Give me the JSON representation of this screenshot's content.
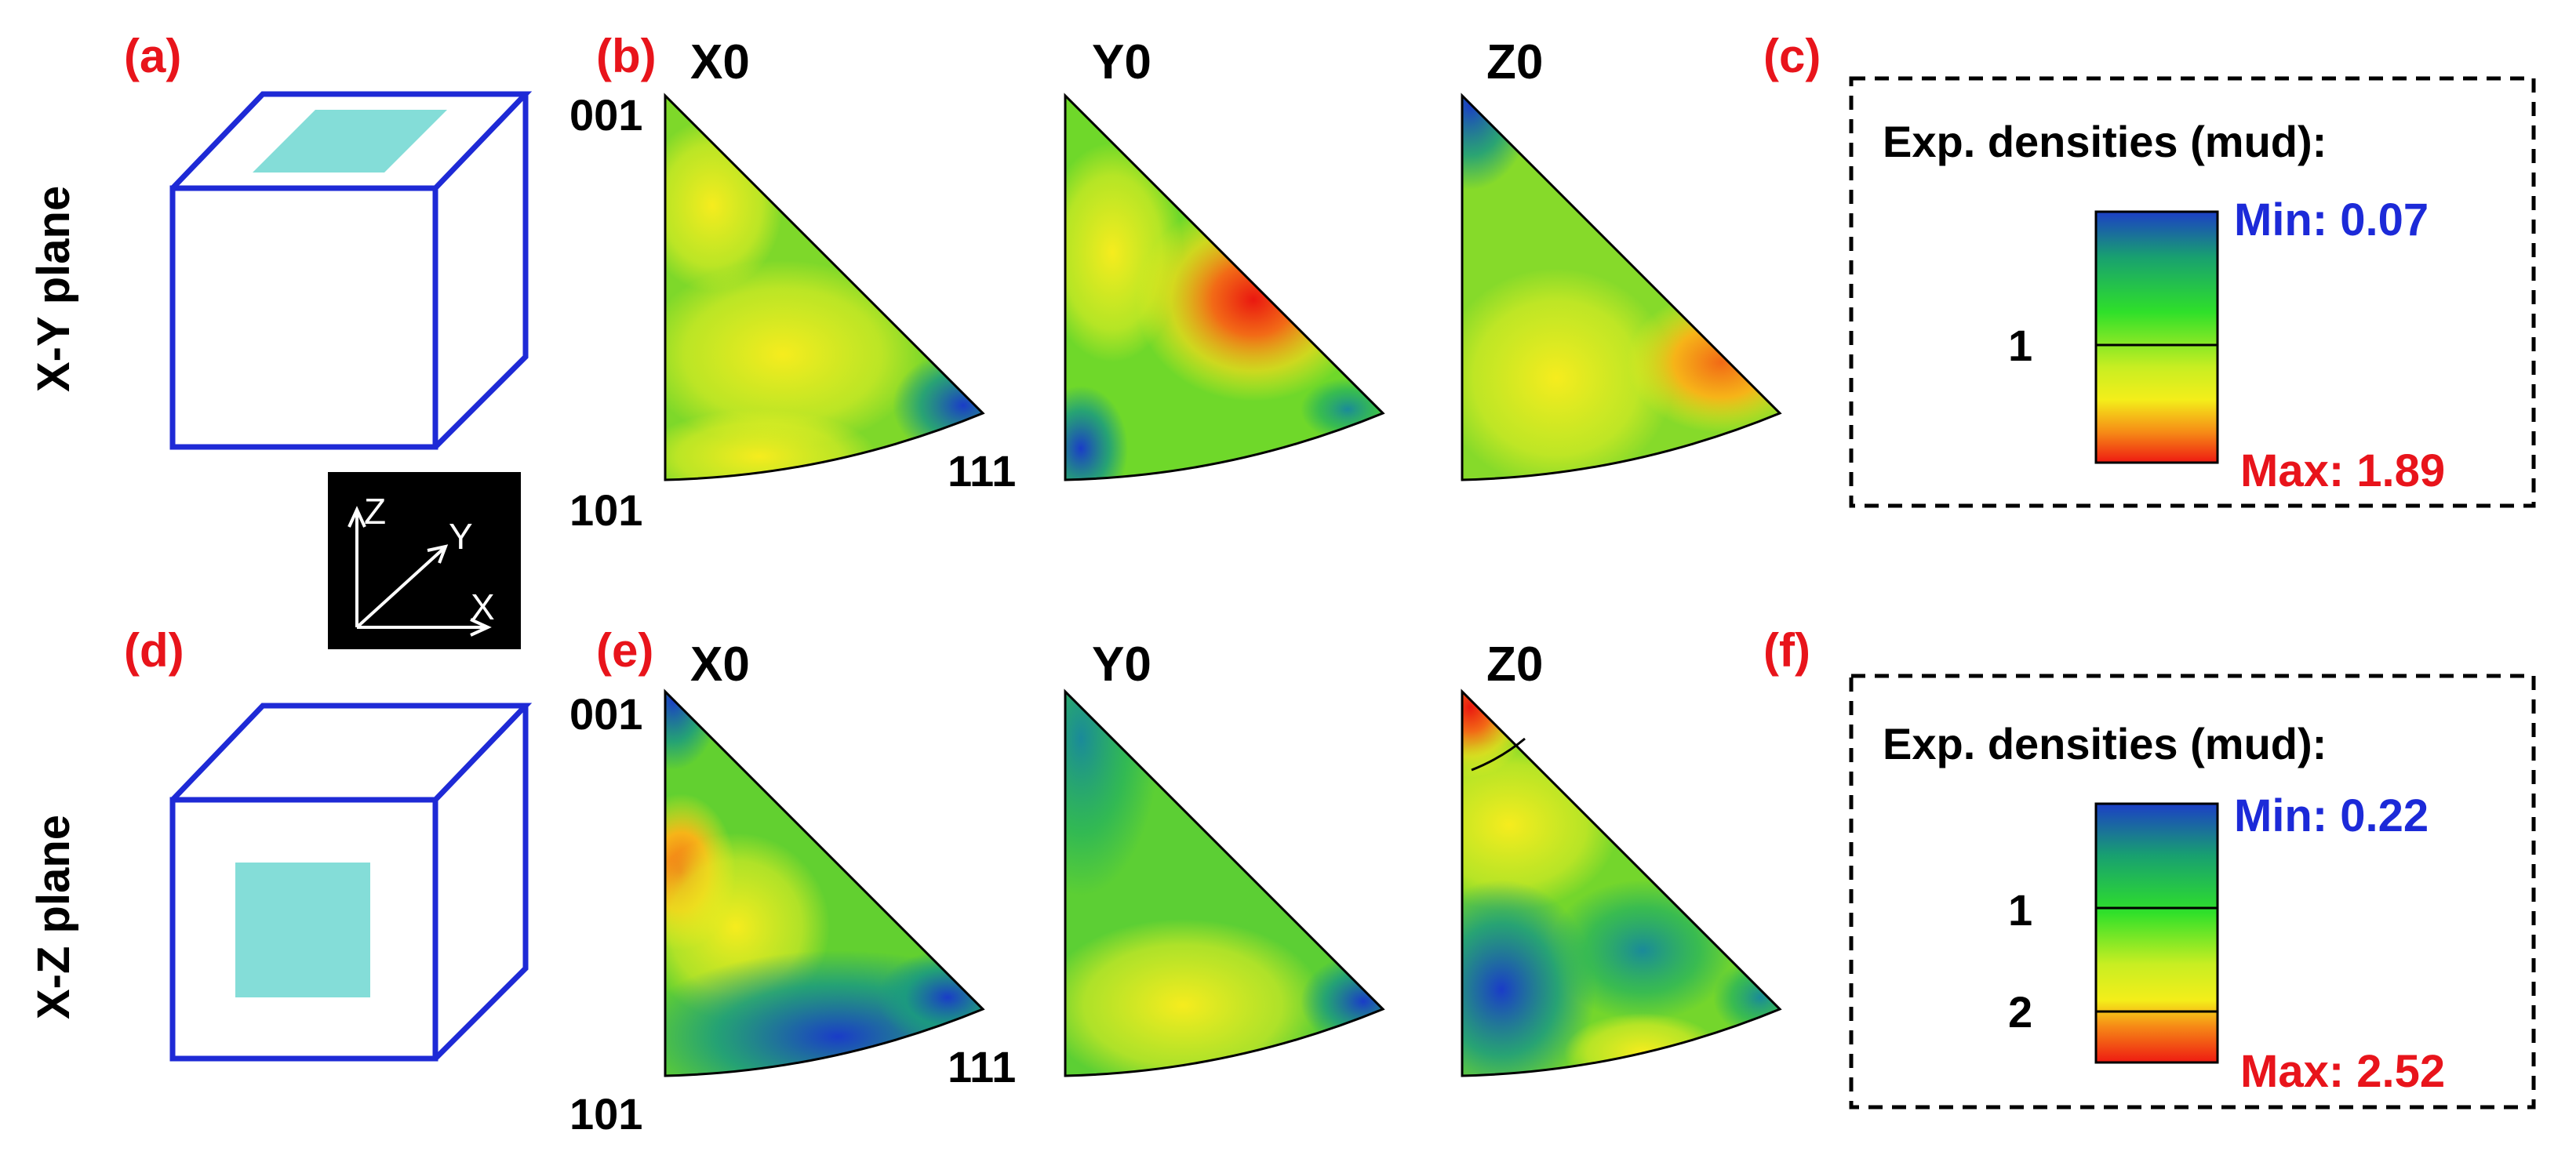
{
  "panel_labels": [
    "(a)",
    "(b)",
    "(c)",
    "(d)",
    "(e)",
    "(f)"
  ],
  "rows": [
    {
      "side_label": "X-Y plane"
    },
    {
      "side_label": "X-Z plane"
    }
  ],
  "map_titles": [
    "X0",
    "Y0",
    "Z0"
  ],
  "corner_labels": {
    "top": "001",
    "bottom_left": "101",
    "bottom_right": "111"
  },
  "axes_inset": {
    "z": "Z",
    "y": "Y",
    "x": "X"
  },
  "legends": [
    {
      "title": "Exp. densities (mud):",
      "min_label": "Min: 0.07",
      "max_label": "Max: 1.89",
      "ticks": [
        "1"
      ]
    },
    {
      "title": "Exp. densities (mud):",
      "min_label": "Min: 0.22",
      "max_label": "Max: 2.52",
      "ticks": [
        "1",
        "2"
      ]
    }
  ],
  "colors": {
    "label_red": "#e8141b",
    "min_blue": "#1c2ad8",
    "cube_blue": "#1e2ad6",
    "face_cyan": "#84ddd8",
    "scale_blue": "#1c48c8",
    "scale_green": "#22e022",
    "scale_yellow": "#f2f21a",
    "scale_red": "#ee1c12"
  }
}
